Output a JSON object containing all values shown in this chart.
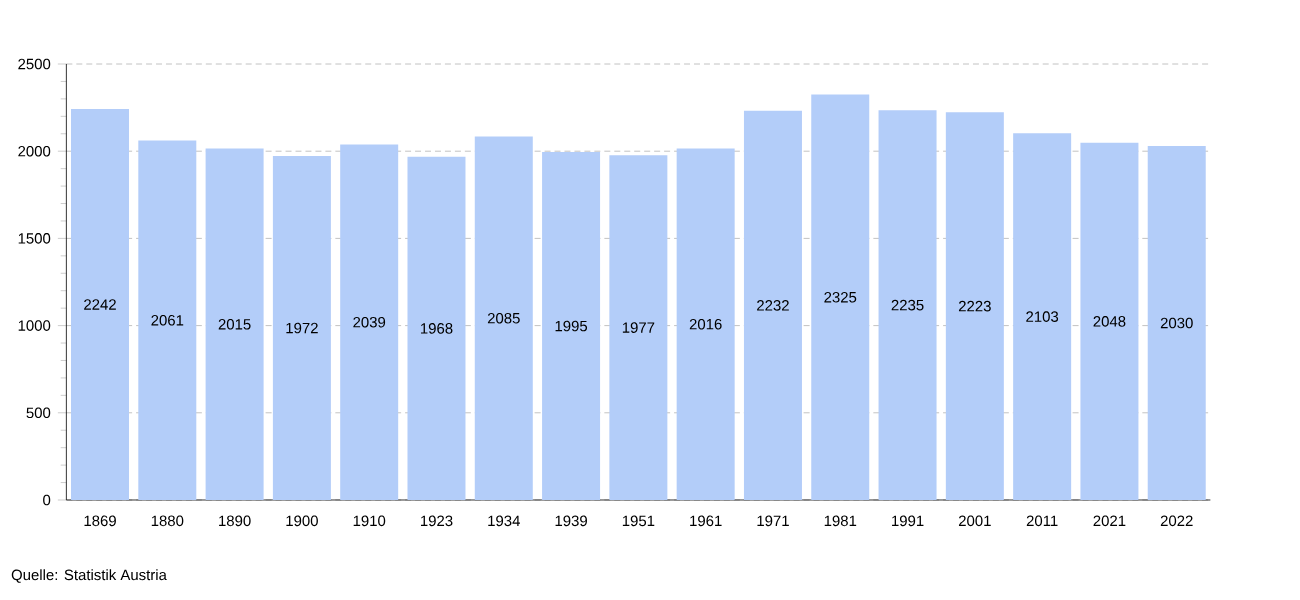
{
  "chart_data": {
    "type": "bar",
    "categories": [
      "1869",
      "1880",
      "1890",
      "1900",
      "1910",
      "1923",
      "1934",
      "1939",
      "1951",
      "1961",
      "1971",
      "1981",
      "1991",
      "2001",
      "2011",
      "2021",
      "2022"
    ],
    "values": [
      2242,
      2061,
      2015,
      1972,
      2039,
      1968,
      2085,
      1995,
      1977,
      2016,
      2232,
      2325,
      2235,
      2223,
      2103,
      2048,
      2030
    ],
    "color": "#b3cdf9",
    "ylim": [
      0,
      2500
    ],
    "yticks": [
      0,
      500,
      1000,
      1500,
      2000,
      2500
    ],
    "grid": "y",
    "data_labels": true,
    "annotations": [
      "Quelle: Statistik Austria"
    ]
  }
}
